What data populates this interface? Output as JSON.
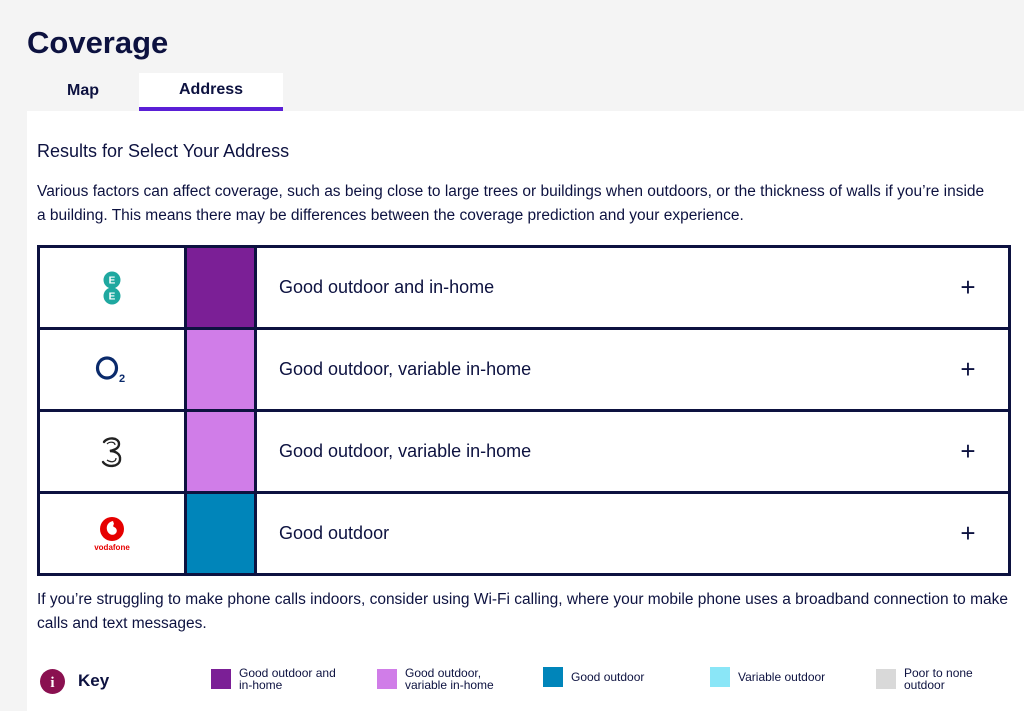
{
  "page": {
    "title": "Coverage"
  },
  "tabs": [
    {
      "label": "Map",
      "active": false
    },
    {
      "label": "Address",
      "active": true
    }
  ],
  "results_heading": "Results for Select Your Address",
  "intro_text": "Various factors can affect coverage, such as being close to large trees or buildings when outdoors, or the thickness of walls if you’re inside a building. This means there may be differences between the coverage prediction and your experience.",
  "operators": [
    {
      "logo": "ee-logo-icon",
      "status": "Good outdoor and in-home",
      "color": "#7b1f96"
    },
    {
      "logo": "o2-logo-icon",
      "status": "Good outdoor, variable in-home",
      "color": "#d07de8"
    },
    {
      "logo": "three-logo-icon",
      "status": "Good outdoor, variable in-home",
      "color": "#d07de8"
    },
    {
      "logo": "vodafone-logo-icon",
      "logo_text": "vodafone",
      "status": "Good outdoor",
      "color": "#0085ba"
    }
  ],
  "expand_symbol": "+",
  "footnote": "If you’re struggling to make phone calls indoors, consider using Wi-Fi calling, where your mobile phone uses a broadband connection to make calls and text messages.",
  "key": {
    "label": "Key",
    "info_icon": "info-icon",
    "info_glyph": "i",
    "items": [
      {
        "label": "Good outdoor and in-home",
        "color": "#7b1f96"
      },
      {
        "label": "Good outdoor, variable in-home",
        "color": "#d07de8"
      },
      {
        "label": "Good outdoor",
        "color": "#0085ba"
      },
      {
        "label": "Variable outdoor",
        "color": "#8ae6f7"
      },
      {
        "label": "Poor to none outdoor",
        "color": "#d9d9d9"
      }
    ]
  }
}
